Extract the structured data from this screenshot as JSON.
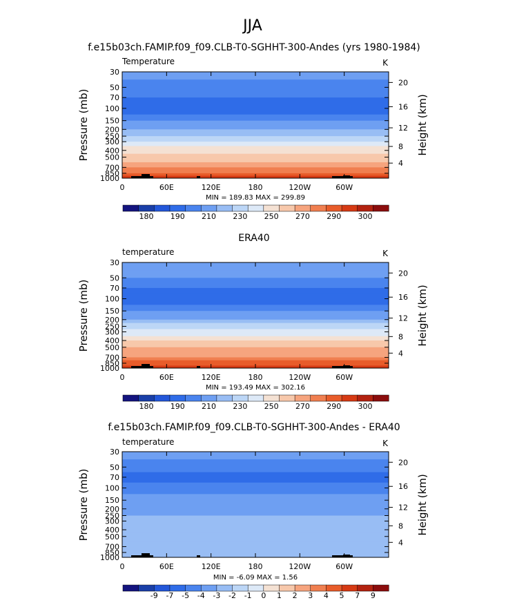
{
  "page": {
    "season_title": "JJA",
    "units_label": "K"
  },
  "colors": {
    "temp_palette": [
      "#14147f",
      "#1a3fa8",
      "#2357d9",
      "#2f6ce8",
      "#4a84ee",
      "#6e9ff2",
      "#98bdf4",
      "#bcd6f6",
      "#dde9f7",
      "#f4e1d3",
      "#f7c8ab",
      "#f6a47e",
      "#f07f50",
      "#e85c2a",
      "#d63a14",
      "#b32210",
      "#8b0d0d"
    ],
    "diff_palette": [
      "#14147f",
      "#1a3fa8",
      "#2357d9",
      "#2f6ce8",
      "#4a84ee",
      "#6e9ff2",
      "#98bdf4",
      "#bcd6f6",
      "#dde9f7",
      "#f4e1d3",
      "#f7c8ab",
      "#f6a47e",
      "#f07f50",
      "#e85c2a",
      "#d63a14",
      "#b32210",
      "#8b0d0d"
    ],
    "terrain": "#000000"
  },
  "chart_data": [
    {
      "type": "heatmap",
      "title": "f.e15b03ch.FAMIP.f09_f09.CLB-T0-SGHHT-300-Andes (yrs 1980-1984)",
      "variable_label": "Temperature",
      "units": "K",
      "ylabel": "Pressure (mb)",
      "ylabel_right": "Height (km)",
      "xticks": [
        "0",
        "60E",
        "120E",
        "180",
        "120W",
        "60W"
      ],
      "yticks": [
        "30",
        "50",
        "70",
        "100",
        "150",
        "200",
        "250",
        "300",
        "400",
        "500",
        "700",
        "850",
        "1000"
      ],
      "yticks_right": [
        "20",
        "16",
        "12",
        "8",
        "4"
      ],
      "stats": "MIN = 189.83   MAX = 299.89",
      "colorbar_labels": [
        "180",
        "190",
        "210",
        "230",
        "250",
        "270",
        "290",
        "300"
      ],
      "bands": [
        {
          "p": 30,
          "t": 213
        },
        {
          "p": 50,
          "t": 208
        },
        {
          "p": 70,
          "t": 198
        },
        {
          "p": 100,
          "t": 194
        },
        {
          "p": 150,
          "t": 208
        },
        {
          "p": 200,
          "t": 220
        },
        {
          "p": 250,
          "t": 230
        },
        {
          "p": 300,
          "t": 240
        },
        {
          "p": 400,
          "t": 256
        },
        {
          "p": 500,
          "t": 266
        },
        {
          "p": 700,
          "t": 280
        },
        {
          "p": 850,
          "t": 291
        },
        {
          "p": 1000,
          "t": 298
        }
      ]
    },
    {
      "type": "heatmap",
      "title": "ERA40",
      "variable_label": "temperature",
      "units": "K",
      "ylabel": "Pressure (mb)",
      "ylabel_right": "Height (km)",
      "xticks": [
        "0",
        "60E",
        "120E",
        "180",
        "120W",
        "60W"
      ],
      "yticks": [
        "30",
        "50",
        "70",
        "100",
        "150",
        "200",
        "250",
        "300",
        "400",
        "500",
        "700",
        "850",
        "1000"
      ],
      "yticks_right": [
        "20",
        "16",
        "12",
        "8",
        "4"
      ],
      "stats": "MIN = 193.49   MAX = 302.16",
      "colorbar_labels": [
        "180",
        "190",
        "210",
        "230",
        "250",
        "270",
        "290",
        "300"
      ],
      "bands": [
        {
          "p": 30,
          "t": 216
        },
        {
          "p": 50,
          "t": 210
        },
        {
          "p": 70,
          "t": 201
        },
        {
          "p": 100,
          "t": 196
        },
        {
          "p": 150,
          "t": 210
        },
        {
          "p": 200,
          "t": 222
        },
        {
          "p": 250,
          "t": 233
        },
        {
          "p": 300,
          "t": 243
        },
        {
          "p": 400,
          "t": 258
        },
        {
          "p": 500,
          "t": 268
        },
        {
          "p": 700,
          "t": 283
        },
        {
          "p": 850,
          "t": 293
        },
        {
          "p": 1000,
          "t": 300
        }
      ]
    },
    {
      "type": "heatmap",
      "title": "f.e15b03ch.FAMIP.f09_f09.CLB-T0-SGHHT-300-Andes - ERA40",
      "variable_label": "temperature",
      "units": "K",
      "ylabel": "Pressure (mb)",
      "ylabel_right": "Height (km)",
      "xticks": [
        "0",
        "60E",
        "120E",
        "180",
        "120W",
        "60W"
      ],
      "yticks": [
        "30",
        "50",
        "70",
        "100",
        "150",
        "200",
        "250",
        "300",
        "400",
        "500",
        "700",
        "850",
        "1000"
      ],
      "yticks_right": [
        "20",
        "16",
        "12",
        "8",
        "4"
      ],
      "stats": "MIN =   -6.09   MAX =    1.56",
      "colorbar_labels": [
        "-9",
        "-7",
        "-5",
        "-4",
        "-3",
        "-2",
        "-1",
        "0",
        "1",
        "2",
        "3",
        "4",
        "5",
        "7",
        "9"
      ],
      "bands": [
        {
          "p": 30,
          "t": -2.5
        },
        {
          "p": 50,
          "t": -3.2
        },
        {
          "p": 70,
          "t": -4.3
        },
        {
          "p": 100,
          "t": -3.4
        },
        {
          "p": 150,
          "t": -2.6
        },
        {
          "p": 200,
          "t": -2.2
        },
        {
          "p": 250,
          "t": -2.0
        },
        {
          "p": 300,
          "t": -1.6
        },
        {
          "p": 400,
          "t": -1.4
        },
        {
          "p": 500,
          "t": -1.5
        },
        {
          "p": 700,
          "t": -1.4
        },
        {
          "p": 850,
          "t": -1.2
        },
        {
          "p": 1000,
          "t": -1.6
        }
      ]
    }
  ]
}
